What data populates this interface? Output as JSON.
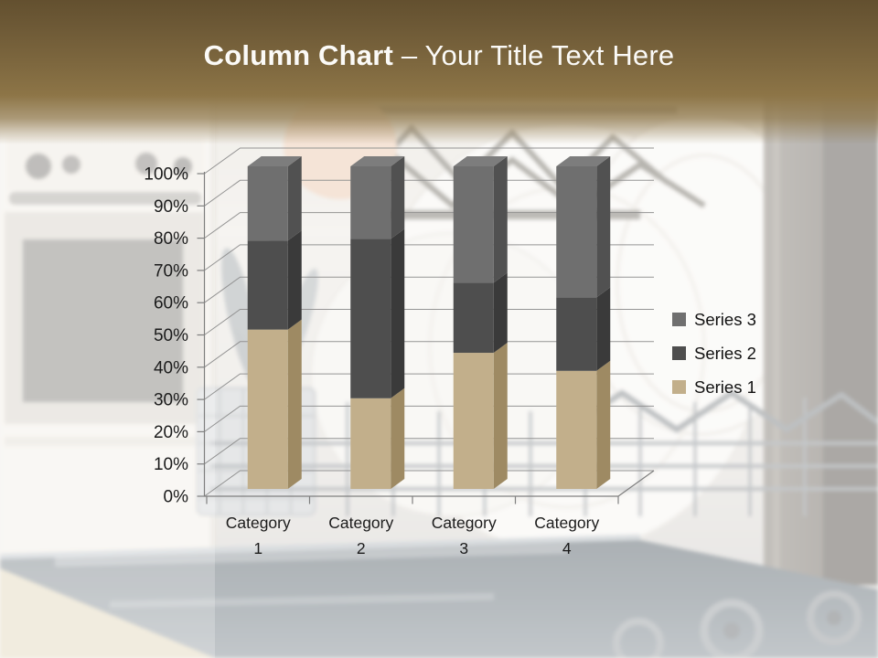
{
  "slide": {
    "title": {
      "bold": "Column Chart",
      "rest": " – Your Title Text Here"
    }
  },
  "chart_data": {
    "type": "bar",
    "variant": "3d-100-percent-stacked-column",
    "title": "",
    "xlabel": "",
    "ylabel": "",
    "categories": [
      "Category 1",
      "Category 2",
      "Category 3",
      "Category 4"
    ],
    "series": [
      {
        "name": "Series 1",
        "color": "#c2af8b",
        "color_side": "#9e8a63",
        "color_top": "#cfc0a0",
        "values_pct": [
          49.4,
          28.1,
          42.2,
          36.6
        ]
      },
      {
        "name": "Series 2",
        "color": "#4e4e4e",
        "color_side": "#3a3a3a",
        "color_top": "#5e5e5e",
        "values_pct": [
          27.6,
          49.4,
          21.7,
          22.8
        ]
      },
      {
        "name": "Series 3",
        "color": "#6f6f6f",
        "color_side": "#515151",
        "color_top": "#7d7d7d",
        "values_pct": [
          23.0,
          22.5,
          36.1,
          40.6
        ]
      }
    ],
    "y_ticks": [
      "0%",
      "10%",
      "20%",
      "30%",
      "40%",
      "50%",
      "60%",
      "70%",
      "80%",
      "90%",
      "100%"
    ],
    "ylim": [
      0,
      100
    ],
    "grid": true,
    "legend": {
      "position": "middle-right",
      "entries": [
        "Series 3",
        "Series 2",
        "Series 1"
      ]
    }
  },
  "colors": {
    "banner_top": "#63502f",
    "banner_bottom": "#8d7547",
    "title_text": "#fbfaf7",
    "axis": "#7f7f7f",
    "gridline": "#8f8f8f",
    "label_text": "#1b1b1b"
  }
}
